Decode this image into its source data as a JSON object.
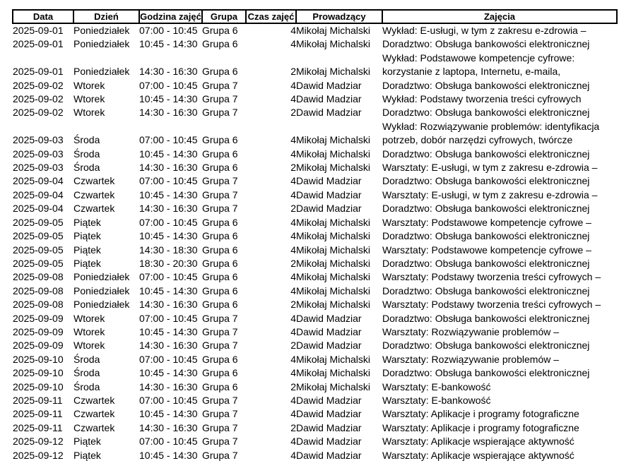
{
  "table": {
    "columns": [
      {
        "key": "date",
        "label": "Data"
      },
      {
        "key": "day",
        "label": "Dzień"
      },
      {
        "key": "time",
        "label": "Godzina zajęć"
      },
      {
        "key": "group",
        "label": "Grupa"
      },
      {
        "key": "hours",
        "label": "Czas zajęć"
      },
      {
        "key": "instructor",
        "label": "Prowadzący"
      },
      {
        "key": "activity",
        "label": "Zajęcia"
      }
    ],
    "rows": [
      {
        "date": "2025-09-01",
        "day": "Poniedziałek",
        "time": "07:00 - 10:45",
        "group": "Grupa 6",
        "hours": "4",
        "instructor": "Mikołaj Michalski",
        "activity_lines": [
          "Wykład: E-usługi, w tym z zakresu e-zdrowia –"
        ]
      },
      {
        "date": "2025-09-01",
        "day": "Poniedziałek",
        "time": "10:45 - 14:30",
        "group": "Grupa 6",
        "hours": "4",
        "instructor": "Mikołaj Michalski",
        "activity_lines": [
          "Doradztwo: Obsługa bankowości elektronicznej"
        ]
      },
      {
        "date": "2025-09-01",
        "day": "Poniedziałek",
        "time": "14:30 - 16:30",
        "group": "Grupa 6",
        "hours": "2",
        "instructor": "Mikołaj Michalski",
        "activity_lines": [
          "Wykład: Podstawowe kompetencje cyfrowe:",
          "korzystanie z laptopa, Internetu, e-maila,"
        ]
      },
      {
        "date": "2025-09-02",
        "day": "Wtorek",
        "time": "07:00 - 10:45",
        "group": "Grupa 7",
        "hours": "4",
        "instructor": "Dawid Madziar",
        "activity_lines": [
          "Doradztwo: Obsługa bankowości elektronicznej"
        ]
      },
      {
        "date": "2025-09-02",
        "day": "Wtorek",
        "time": "10:45 - 14:30",
        "group": "Grupa 7",
        "hours": "4",
        "instructor": "Dawid Madziar",
        "activity_lines": [
          "Wykład: Podstawy tworzenia treści cyfrowych"
        ]
      },
      {
        "date": "2025-09-02",
        "day": "Wtorek",
        "time": "14:30 - 16:30",
        "group": "Grupa 7",
        "hours": "2",
        "instructor": "Dawid Madziar",
        "activity_lines": [
          "Doradztwo: Obsługa bankowości elektronicznej"
        ]
      },
      {
        "date": "2025-09-03",
        "day": "Środa",
        "time": "07:00 - 10:45",
        "group": "Grupa 6",
        "hours": "4",
        "instructor": "Mikołaj Michalski",
        "activity_lines": [
          "Wykład: Rozwiązywanie problemów: identyfikacja",
          "potrzeb, dobór narzędzi cyfrowych, twórcze"
        ]
      },
      {
        "date": "2025-09-03",
        "day": "Środa",
        "time": "10:45 - 14:30",
        "group": "Grupa 6",
        "hours": "4",
        "instructor": "Mikołaj Michalski",
        "activity_lines": [
          "Doradztwo: Obsługa bankowości elektronicznej"
        ]
      },
      {
        "date": "2025-09-03",
        "day": "Środa",
        "time": "14:30 - 16:30",
        "group": "Grupa 6",
        "hours": "2",
        "instructor": "Mikołaj Michalski",
        "activity_lines": [
          "Warsztaty: E-usługi, w tym z zakresu e-zdrowia –"
        ]
      },
      {
        "date": "2025-09-04",
        "day": "Czwartek",
        "time": "07:00 - 10:45",
        "group": "Grupa 7",
        "hours": "4",
        "instructor": "Dawid Madziar",
        "activity_lines": [
          "Doradztwo: Obsługa bankowości elektronicznej"
        ]
      },
      {
        "date": "2025-09-04",
        "day": "Czwartek",
        "time": "10:45 - 14:30",
        "group": "Grupa 7",
        "hours": "4",
        "instructor": "Dawid Madziar",
        "activity_lines": [
          "Warsztaty: E-usługi, w tym z zakresu e-zdrowia –"
        ]
      },
      {
        "date": "2025-09-04",
        "day": "Czwartek",
        "time": "14:30 - 16:30",
        "group": "Grupa 7",
        "hours": "2",
        "instructor": "Dawid Madziar",
        "activity_lines": [
          "Doradztwo: Obsługa bankowości elektronicznej"
        ]
      },
      {
        "date": "2025-09-05",
        "day": "Piątek",
        "time": "07:00 - 10:45",
        "group": "Grupa 6",
        "hours": "4",
        "instructor": "Mikołaj Michalski",
        "activity_lines": [
          "Warsztaty: Podstawowe kompetencje cyfrowe –"
        ]
      },
      {
        "date": "2025-09-05",
        "day": "Piątek",
        "time": "10:45 - 14:30",
        "group": "Grupa 6",
        "hours": "4",
        "instructor": "Mikołaj Michalski",
        "activity_lines": [
          "Doradztwo: Obsługa bankowości elektronicznej"
        ]
      },
      {
        "date": "2025-09-05",
        "day": "Piątek",
        "time": "14:30 - 18:30",
        "group": "Grupa 6",
        "hours": "4",
        "instructor": "Mikołaj Michalski",
        "activity_lines": [
          "Warsztaty: Podstawowe kompetencje cyfrowe –"
        ]
      },
      {
        "date": "2025-09-05",
        "day": "Piątek",
        "time": "18:30 - 20:30",
        "group": "Grupa 6",
        "hours": "2",
        "instructor": "Mikołaj Michalski",
        "activity_lines": [
          "Doradztwo: Obsługa bankowości elektronicznej"
        ]
      },
      {
        "date": "2025-09-08",
        "day": "Poniedziałek",
        "time": "07:00 - 10:45",
        "group": "Grupa 6",
        "hours": "4",
        "instructor": "Mikołaj Michalski",
        "activity_lines": [
          "Warsztaty: Podstawy tworzenia treści cyfrowych –"
        ]
      },
      {
        "date": "2025-09-08",
        "day": "Poniedziałek",
        "time": "10:45 - 14:30",
        "group": "Grupa 6",
        "hours": "4",
        "instructor": "Mikołaj Michalski",
        "activity_lines": [
          "Doradztwo: Obsługa bankowości elektronicznej"
        ]
      },
      {
        "date": "2025-09-08",
        "day": "Poniedziałek",
        "time": "14:30 - 16:30",
        "group": "Grupa 6",
        "hours": "2",
        "instructor": "Mikołaj Michalski",
        "activity_lines": [
          "Warsztaty: Podstawy tworzenia treści cyfrowych –"
        ]
      },
      {
        "date": "2025-09-09",
        "day": "Wtorek",
        "time": "07:00 - 10:45",
        "group": "Grupa 7",
        "hours": "4",
        "instructor": "Dawid Madziar",
        "activity_lines": [
          "Doradztwo: Obsługa bankowości elektronicznej"
        ]
      },
      {
        "date": "2025-09-09",
        "day": "Wtorek",
        "time": "10:45 - 14:30",
        "group": "Grupa 7",
        "hours": "4",
        "instructor": "Dawid Madziar",
        "activity_lines": [
          "Warsztaty: Rozwiązywanie problemów –"
        ]
      },
      {
        "date": "2025-09-09",
        "day": "Wtorek",
        "time": "14:30 - 16:30",
        "group": "Grupa 7",
        "hours": "2",
        "instructor": "Dawid Madziar",
        "activity_lines": [
          "Doradztwo: Obsługa bankowości elektronicznej"
        ]
      },
      {
        "date": "2025-09-10",
        "day": "Środa",
        "time": "07:00 - 10:45",
        "group": "Grupa 6",
        "hours": "4",
        "instructor": "Mikołaj Michalski",
        "activity_lines": [
          "Warsztaty: Rozwiązywanie problemów –"
        ]
      },
      {
        "date": "2025-09-10",
        "day": "Środa",
        "time": "10:45 - 14:30",
        "group": "Grupa 6",
        "hours": "4",
        "instructor": "Mikołaj Michalski",
        "activity_lines": [
          "Doradztwo: Obsługa bankowości elektronicznej"
        ]
      },
      {
        "date": "2025-09-10",
        "day": "Środa",
        "time": "14:30 - 16:30",
        "group": "Grupa 6",
        "hours": "2",
        "instructor": "Mikołaj Michalski",
        "activity_lines": [
          "Warsztaty: E-bankowość"
        ]
      },
      {
        "date": "2025-09-11",
        "day": "Czwartek",
        "time": "07:00 - 10:45",
        "group": "Grupa 7",
        "hours": "4",
        "instructor": "Dawid Madziar",
        "activity_lines": [
          "Warsztaty: E-bankowość"
        ]
      },
      {
        "date": "2025-09-11",
        "day": "Czwartek",
        "time": "10:45 - 14:30",
        "group": "Grupa 7",
        "hours": "4",
        "instructor": "Dawid Madziar",
        "activity_lines": [
          "Warsztaty: Aplikacje i programy fotograficzne"
        ]
      },
      {
        "date": "2025-09-11",
        "day": "Czwartek",
        "time": "14:30 - 16:30",
        "group": "Grupa 7",
        "hours": "2",
        "instructor": "Dawid Madziar",
        "activity_lines": [
          "Warsztaty: Aplikacje i programy fotograficzne"
        ]
      },
      {
        "date": "2025-09-12",
        "day": "Piątek",
        "time": "07:00 - 10:45",
        "group": "Grupa 7",
        "hours": "4",
        "instructor": "Dawid Madziar",
        "activity_lines": [
          "Warsztaty: Aplikacje wspierające aktywność"
        ]
      },
      {
        "date": "2025-09-12",
        "day": "Piątek",
        "time": "10:45 - 14:30",
        "group": "Grupa 7",
        "hours": "4",
        "instructor": "Dawid Madziar",
        "activity_lines": [
          "Warsztaty: Aplikacje wspierające aktywność"
        ]
      }
    ]
  }
}
